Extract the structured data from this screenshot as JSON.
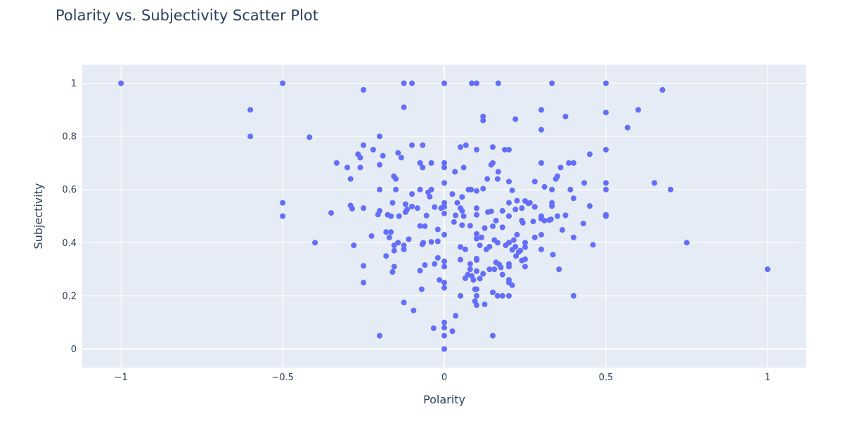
{
  "chart_data": {
    "type": "scatter",
    "title": "Polarity vs. Subjectivity Scatter Plot",
    "xlabel": "Polarity",
    "ylabel": "Subjectivity",
    "xlim": [
      -1.12,
      1.12
    ],
    "ylim": [
      -0.07,
      1.07
    ],
    "xticks": [
      -1,
      -0.5,
      0,
      0.5,
      1
    ],
    "xtick_labels": [
      "−1",
      "−0.5",
      "0",
      "0.5",
      "1"
    ],
    "yticks": [
      0,
      0.2,
      0.4,
      0.6,
      0.8,
      1
    ],
    "ytick_labels": [
      "0",
      "0.2",
      "0.4",
      "0.6",
      "0.8",
      "1"
    ],
    "grid": true,
    "colors": {
      "marker": "#636efa",
      "plot_bg": "#e5ecf6",
      "grid": "#ffffff",
      "text": "#2a3f5f"
    },
    "points": [
      [
        -1,
        1
      ],
      [
        -0.5,
        1
      ],
      [
        -0.125,
        1
      ],
      [
        -0.1,
        1
      ],
      [
        0,
        1
      ],
      [
        0.085,
        1
      ],
      [
        0.1,
        1
      ],
      [
        0.167,
        1
      ],
      [
        0.333,
        1
      ],
      [
        0.5,
        1
      ],
      [
        -0.25,
        0.975
      ],
      [
        0.675,
        0.975
      ],
      [
        -0.125,
        0.91
      ],
      [
        -0.6,
        0.9
      ],
      [
        0.3,
        0.9
      ],
      [
        0.6,
        0.9
      ],
      [
        0.5,
        0.89
      ],
      [
        0.12,
        0.875
      ],
      [
        0.375,
        0.875
      ],
      [
        0.12,
        0.86
      ],
      [
        0.22,
        0.865
      ],
      [
        0.3,
        0.825
      ],
      [
        0.567,
        0.833
      ],
      [
        -0.6,
        0.8
      ],
      [
        -0.417,
        0.797
      ],
      [
        -0.2,
        0.8
      ],
      [
        -0.25,
        0.767
      ],
      [
        -0.1,
        0.767
      ],
      [
        -0.067,
        0.767
      ],
      [
        0.05,
        0.76
      ],
      [
        0.067,
        0.767
      ],
      [
        0.15,
        0.76
      ],
      [
        0.1,
        0.75
      ],
      [
        0.187,
        0.75
      ],
      [
        0.2,
        0.75
      ],
      [
        0.5,
        0.75
      ],
      [
        -0.22,
        0.75
      ],
      [
        -0.267,
        0.733
      ],
      [
        -0.143,
        0.738
      ],
      [
        -0.19,
        0.727
      ],
      [
        -0.26,
        0.72
      ],
      [
        -0.133,
        0.72
      ],
      [
        0.45,
        0.733
      ],
      [
        -0.333,
        0.7
      ],
      [
        -0.075,
        0.7
      ],
      [
        -0.04,
        0.7
      ],
      [
        0,
        0.7
      ],
      [
        0.15,
        0.7
      ],
      [
        0.3,
        0.7
      ],
      [
        0.385,
        0.7
      ],
      [
        0.4,
        0.7
      ],
      [
        0.145,
        0.693
      ],
      [
        -0.3,
        0.683
      ],
      [
        -0.26,
        0.683
      ],
      [
        -0.2,
        0.693
      ],
      [
        -0.067,
        0.683
      ],
      [
        0,
        0.683
      ],
      [
        0.06,
        0.683
      ],
      [
        0.36,
        0.683
      ],
      [
        0.033,
        0.667
      ],
      [
        0.167,
        0.667
      ],
      [
        -0.156,
        0.65
      ],
      [
        -0.15,
        0.64
      ],
      [
        0.35,
        0.65
      ],
      [
        0.345,
        0.64
      ],
      [
        -0.29,
        0.64
      ],
      [
        0.133,
        0.64
      ],
      [
        0.165,
        0.64
      ],
      [
        0.2,
        0.63
      ],
      [
        0.28,
        0.63
      ],
      [
        0.433,
        0.625
      ],
      [
        0.5,
        0.625
      ],
      [
        0.65,
        0.625
      ],
      [
        0,
        0.625
      ],
      [
        -0.2,
        0.6
      ],
      [
        -0.15,
        0.6
      ],
      [
        -0.075,
        0.6
      ],
      [
        -0.04,
        0.6
      ],
      [
        -0.05,
        0.59
      ],
      [
        0.075,
        0.6
      ],
      [
        0.083,
        0.6
      ],
      [
        0.1,
        0.595
      ],
      [
        0.12,
        0.603
      ],
      [
        0.21,
        0.597
      ],
      [
        0.333,
        0.6
      ],
      [
        0.39,
        0.6
      ],
      [
        0.5,
        0.6
      ],
      [
        0.7,
        0.6
      ],
      [
        0.31,
        0.61
      ],
      [
        -0.1,
        0.583
      ],
      [
        -0.045,
        0.573
      ],
      [
        0.025,
        0.583
      ],
      [
        0.055,
        0.572
      ],
      [
        0.4,
        0.567
      ],
      [
        0.225,
        0.558
      ],
      [
        -0.29,
        0.54
      ],
      [
        -0.16,
        0.55
      ],
      [
        -0.12,
        0.545
      ],
      [
        -0.1,
        0.536
      ],
      [
        0,
        0.55
      ],
      [
        0.04,
        0.55
      ],
      [
        0.2,
        0.55
      ],
      [
        0.25,
        0.557
      ],
      [
        0.265,
        0.55
      ],
      [
        0.333,
        0.55
      ],
      [
        0.45,
        0.538
      ],
      [
        0.333,
        0.538
      ],
      [
        -0.5,
        0.55
      ],
      [
        -0.35,
        0.512
      ],
      [
        -0.25,
        0.53
      ],
      [
        -0.2,
        0.52
      ],
      [
        -0.205,
        0.506
      ],
      [
        -0.175,
        0.505
      ],
      [
        -0.12,
        0.515
      ],
      [
        -0.115,
        0.525
      ],
      [
        -0.14,
        0.5
      ],
      [
        -0.083,
        0.53
      ],
      [
        -0.03,
        0.534
      ],
      [
        -0.01,
        0.53
      ],
      [
        0,
        0.535
      ],
      [
        0,
        0.51
      ],
      [
        0.05,
        0.53
      ],
      [
        0.055,
        0.52
      ],
      [
        0.1,
        0.53
      ],
      [
        0.1,
        0.505
      ],
      [
        0.135,
        0.515
      ],
      [
        0.145,
        0.518
      ],
      [
        0.18,
        0.52
      ],
      [
        0.2,
        0.5
      ],
      [
        0.22,
        0.525
      ],
      [
        0.24,
        0.53
      ],
      [
        0.26,
        0.548
      ],
      [
        0.28,
        0.535
      ],
      [
        0.3,
        0.5
      ],
      [
        0.3,
        0.49
      ],
      [
        0.31,
        0.483
      ],
      [
        0.35,
        0.5
      ],
      [
        0.375,
        0.503
      ],
      [
        0.5,
        0.5
      ],
      [
        0.5,
        0.505
      ],
      [
        -0.5,
        0.5
      ],
      [
        -0.285,
        0.528
      ],
      [
        -0.165,
        0.5
      ],
      [
        -0.055,
        0.502
      ],
      [
        0.035,
        0.503
      ],
      [
        0.06,
        0.5
      ],
      [
        0.16,
        0.483
      ],
      [
        0.24,
        0.483
      ],
      [
        0.243,
        0.475
      ],
      [
        0.275,
        0.48
      ],
      [
        0.325,
        0.485
      ],
      [
        0.33,
        0.488
      ],
      [
        0.43,
        0.472
      ],
      [
        -0.075,
        0.463
      ],
      [
        -0.06,
        0.462
      ],
      [
        0.03,
        0.478
      ],
      [
        0.055,
        0.466
      ],
      [
        0.08,
        0.464
      ],
      [
        0.15,
        0.462
      ],
      [
        0.18,
        0.458
      ],
      [
        0.125,
        0.455
      ],
      [
        0.365,
        0.448
      ],
      [
        -0.18,
        0.44
      ],
      [
        -0.165,
        0.44
      ],
      [
        -0.225,
        0.425
      ],
      [
        -0.17,
        0.42
      ],
      [
        -0.065,
        0.4
      ],
      [
        -0.04,
        0.403
      ],
      [
        -0.02,
        0.45
      ],
      [
        0,
        0.43
      ],
      [
        0.1,
        0.433
      ],
      [
        0.1,
        0.415
      ],
      [
        0.115,
        0.42
      ],
      [
        0.2,
        0.4
      ],
      [
        0.215,
        0.41
      ],
      [
        0.225,
        0.43
      ],
      [
        0.3,
        0.43
      ],
      [
        0.28,
        0.42
      ],
      [
        0.4,
        0.42
      ],
      [
        -0.4,
        0.4
      ],
      [
        -0.28,
        0.39
      ],
      [
        -0.143,
        0.4
      ],
      [
        -0.125,
        0.39
      ],
      [
        -0.11,
        0.413
      ],
      [
        -0.155,
        0.39
      ],
      [
        -0.068,
        0.394
      ],
      [
        -0.02,
        0.405
      ],
      [
        0.05,
        0.384
      ],
      [
        0.065,
        0.375
      ],
      [
        0.11,
        0.39
      ],
      [
        0.13,
        0.375
      ],
      [
        0.14,
        0.385
      ],
      [
        0.155,
        0.41
      ],
      [
        0.165,
        0.4
      ],
      [
        0.19,
        0.39
      ],
      [
        0.21,
        0.373
      ],
      [
        0.22,
        0.385
      ],
      [
        0.23,
        0.365
      ],
      [
        0.235,
        0.37
      ],
      [
        0.25,
        0.4
      ],
      [
        0.25,
        0.383
      ],
      [
        0.3,
        0.375
      ],
      [
        0.46,
        0.392
      ],
      [
        0.75,
        0.4
      ],
      [
        -0.155,
        0.37
      ],
      [
        -0.125,
        0.375
      ],
      [
        -0.18,
        0.35
      ],
      [
        -0.155,
        0.31
      ],
      [
        -0.06,
        0.316
      ],
      [
        -0.03,
        0.32
      ],
      [
        -0.02,
        0.343
      ],
      [
        0,
        0.33
      ],
      [
        0,
        0.31
      ],
      [
        0.05,
        0.336
      ],
      [
        0.08,
        0.32
      ],
      [
        0.1,
        0.34
      ],
      [
        0.1,
        0.335
      ],
      [
        0.14,
        0.3
      ],
      [
        0.16,
        0.326
      ],
      [
        0.17,
        0.318
      ],
      [
        0.2,
        0.32
      ],
      [
        0.222,
        0.35
      ],
      [
        0.24,
        0.333
      ],
      [
        0.25,
        0.338
      ],
      [
        0.25,
        0.31
      ],
      [
        0.336,
        0.355
      ],
      [
        -0.25,
        0.313
      ],
      [
        -0.16,
        0.29
      ],
      [
        -0.075,
        0.295
      ],
      [
        0.08,
        0.3
      ],
      [
        0.073,
        0.28
      ],
      [
        0.1,
        0.293
      ],
      [
        0.12,
        0.283
      ],
      [
        0.155,
        0.3
      ],
      [
        0.175,
        0.307
      ],
      [
        0.2,
        0.31
      ],
      [
        0.355,
        0.3
      ],
      [
        1,
        0.3
      ],
      [
        -0.25,
        0.25
      ],
      [
        -0.07,
        0.225
      ],
      [
        -0.015,
        0.26
      ],
      [
        0,
        0.25
      ],
      [
        0,
        0.23
      ],
      [
        0.065,
        0.266
      ],
      [
        0.085,
        0.275
      ],
      [
        0.09,
        0.26
      ],
      [
        0.11,
        0.265
      ],
      [
        0.1,
        0.225
      ],
      [
        0.15,
        0.213
      ],
      [
        0.18,
        0.28
      ],
      [
        0.2,
        0.25
      ],
      [
        0.2,
        0.26
      ],
      [
        0.21,
        0.24
      ],
      [
        0.2,
        0.2
      ],
      [
        0.05,
        0.2
      ],
      [
        0.095,
        0.225
      ],
      [
        0.1,
        0.2
      ],
      [
        0.4,
        0.2
      ],
      [
        -0.125,
        0.175
      ],
      [
        -0.095,
        0.145
      ],
      [
        0.095,
        0.18
      ],
      [
        0.1,
        0.165
      ],
      [
        0.125,
        0.168
      ],
      [
        0.165,
        0.2
      ],
      [
        0.18,
        0.2
      ],
      [
        0.035,
        0.125
      ],
      [
        0,
        0.1
      ],
      [
        -0.033,
        0.078
      ],
      [
        0,
        0.08
      ],
      [
        0.025,
        0.067
      ],
      [
        -0.2,
        0.05
      ],
      [
        0,
        0.05
      ],
      [
        0.15,
        0.05
      ],
      [
        0,
        0
      ],
      [
        0,
        0
      ]
    ]
  }
}
